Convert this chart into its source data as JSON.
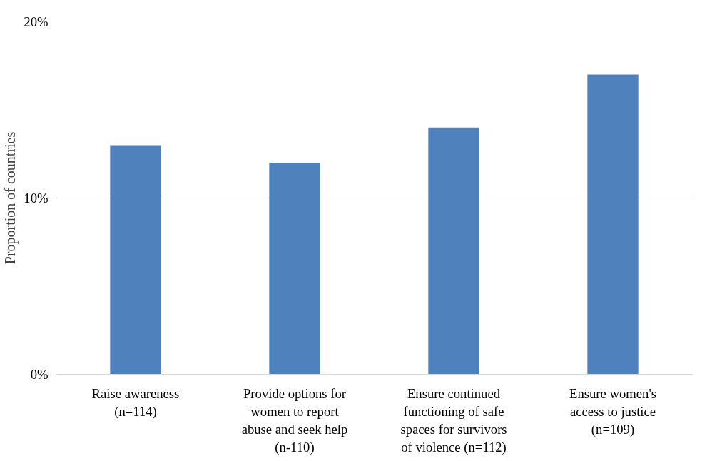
{
  "chart_data": {
    "type": "bar",
    "ylabel": "Proportion of countries",
    "categories": [
      "Raise awareness (n=114)",
      "Provide options for women to report abuse and seek help (n-110)",
      "Ensure continued functioning of safe spaces for survivors of violence (n=112)",
      "Ensure women's access to justice (n=109)"
    ],
    "values": [
      13,
      12,
      14,
      17
    ],
    "color": "#4f81bd",
    "ylim": [
      0,
      20
    ],
    "yticks": [
      {
        "value": 0,
        "label": "0%"
      },
      {
        "value": 10,
        "label": "10%"
      },
      {
        "value": 20,
        "label": "20%"
      }
    ],
    "grid": "y"
  }
}
